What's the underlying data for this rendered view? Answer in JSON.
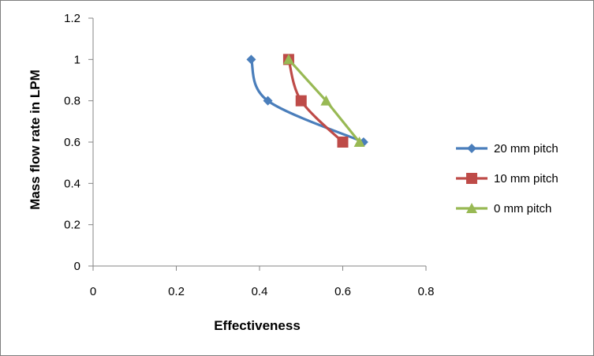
{
  "chart_data": {
    "type": "scatter",
    "title": "",
    "xlabel": "Effectiveness",
    "ylabel": "Mass flow rate in LPM",
    "xlim": [
      0,
      0.8
    ],
    "ylim": [
      0,
      1.2
    ],
    "xticks": [
      0,
      0.2,
      0.4,
      0.6,
      0.8
    ],
    "xtick_labels": [
      "0",
      "0.2",
      "0.4",
      "0.6",
      "0.8"
    ],
    "yticks": [
      0,
      0.2,
      0.4,
      0.6,
      0.8,
      1,
      1.2
    ],
    "ytick_labels": [
      "0",
      "0.2",
      "0.4",
      "0.6",
      "0.8",
      "1",
      "1.2"
    ],
    "grid": false,
    "legend_position": "right",
    "series": [
      {
        "name": "20 mm pitch",
        "color": "#4a7ebb",
        "marker": "diamond",
        "smooth": true,
        "points": [
          {
            "x": 0.38,
            "y": 1.0
          },
          {
            "x": 0.42,
            "y": 0.8
          },
          {
            "x": 0.65,
            "y": 0.6
          }
        ]
      },
      {
        "name": "10 mm pitch",
        "color": "#be4b48",
        "marker": "square",
        "smooth": true,
        "points": [
          {
            "x": 0.47,
            "y": 1.0
          },
          {
            "x": 0.5,
            "y": 0.8
          },
          {
            "x": 0.6,
            "y": 0.6
          }
        ]
      },
      {
        "name": "0 mm pitch",
        "color": "#98b954",
        "marker": "triangle",
        "smooth": false,
        "points": [
          {
            "x": 0.47,
            "y": 1.0
          },
          {
            "x": 0.56,
            "y": 0.8
          },
          {
            "x": 0.64,
            "y": 0.6
          }
        ]
      }
    ]
  }
}
